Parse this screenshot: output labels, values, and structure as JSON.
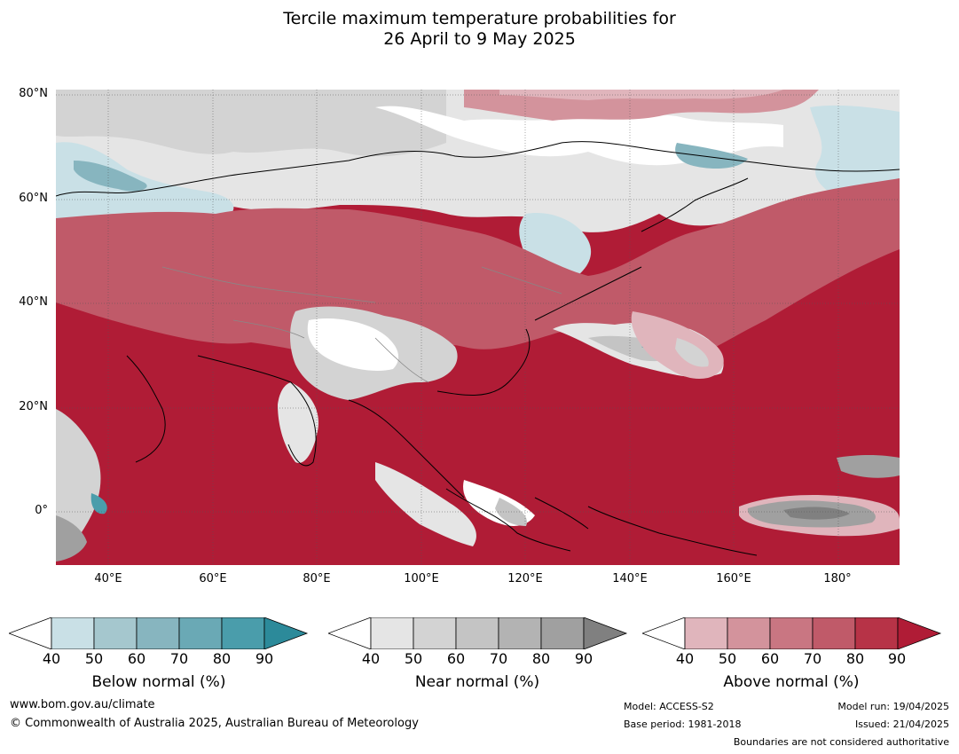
{
  "title": {
    "line1": "Tercile maximum temperature probabilities for",
    "line2": "26 April to 9 May 2025"
  },
  "map": {
    "lat_labels": [
      "80°N",
      "60°N",
      "40°N",
      "20°N",
      "0°"
    ],
    "lon_labels": [
      "40°E",
      "60°E",
      "80°E",
      "100°E",
      "120°E",
      "140°E",
      "160°E",
      "180°"
    ]
  },
  "colorbars": [
    {
      "label": "Below normal (%)",
      "ticks": [
        "40",
        "50",
        "60",
        "70",
        "80",
        "90"
      ],
      "colors": [
        "#ffffff",
        "#c9e0e6",
        "#a5c7ce",
        "#87b5bf",
        "#6aa9b5",
        "#4a9dab",
        "#2c8a9a"
      ]
    },
    {
      "label": "Near normal (%)",
      "ticks": [
        "40",
        "50",
        "60",
        "70",
        "80",
        "90"
      ],
      "colors": [
        "#ffffff",
        "#e5e5e5",
        "#d3d3d3",
        "#c4c4c4",
        "#b3b3b3",
        "#a0a0a0",
        "#808080"
      ]
    },
    {
      "label": "Above normal (%)",
      "ticks": [
        "40",
        "50",
        "60",
        "70",
        "80",
        "90"
      ],
      "colors": [
        "#ffffff",
        "#e0b5bc",
        "#d3939c",
        "#c97682",
        "#c05a69",
        "#b73347",
        "#b01c36"
      ]
    }
  ],
  "footer": {
    "website": "www.bom.gov.au/climate",
    "copyright": "© Commonwealth of Australia 2025, Australian Bureau of Meteorology",
    "model": "Model: ACCESS-S2",
    "base_period": "Base period: 1981-2018",
    "model_run": "Model run: 19/04/2025",
    "issued": "Issued: 21/04/2025",
    "disclaimer": "Boundaries are not considered authoritative"
  }
}
